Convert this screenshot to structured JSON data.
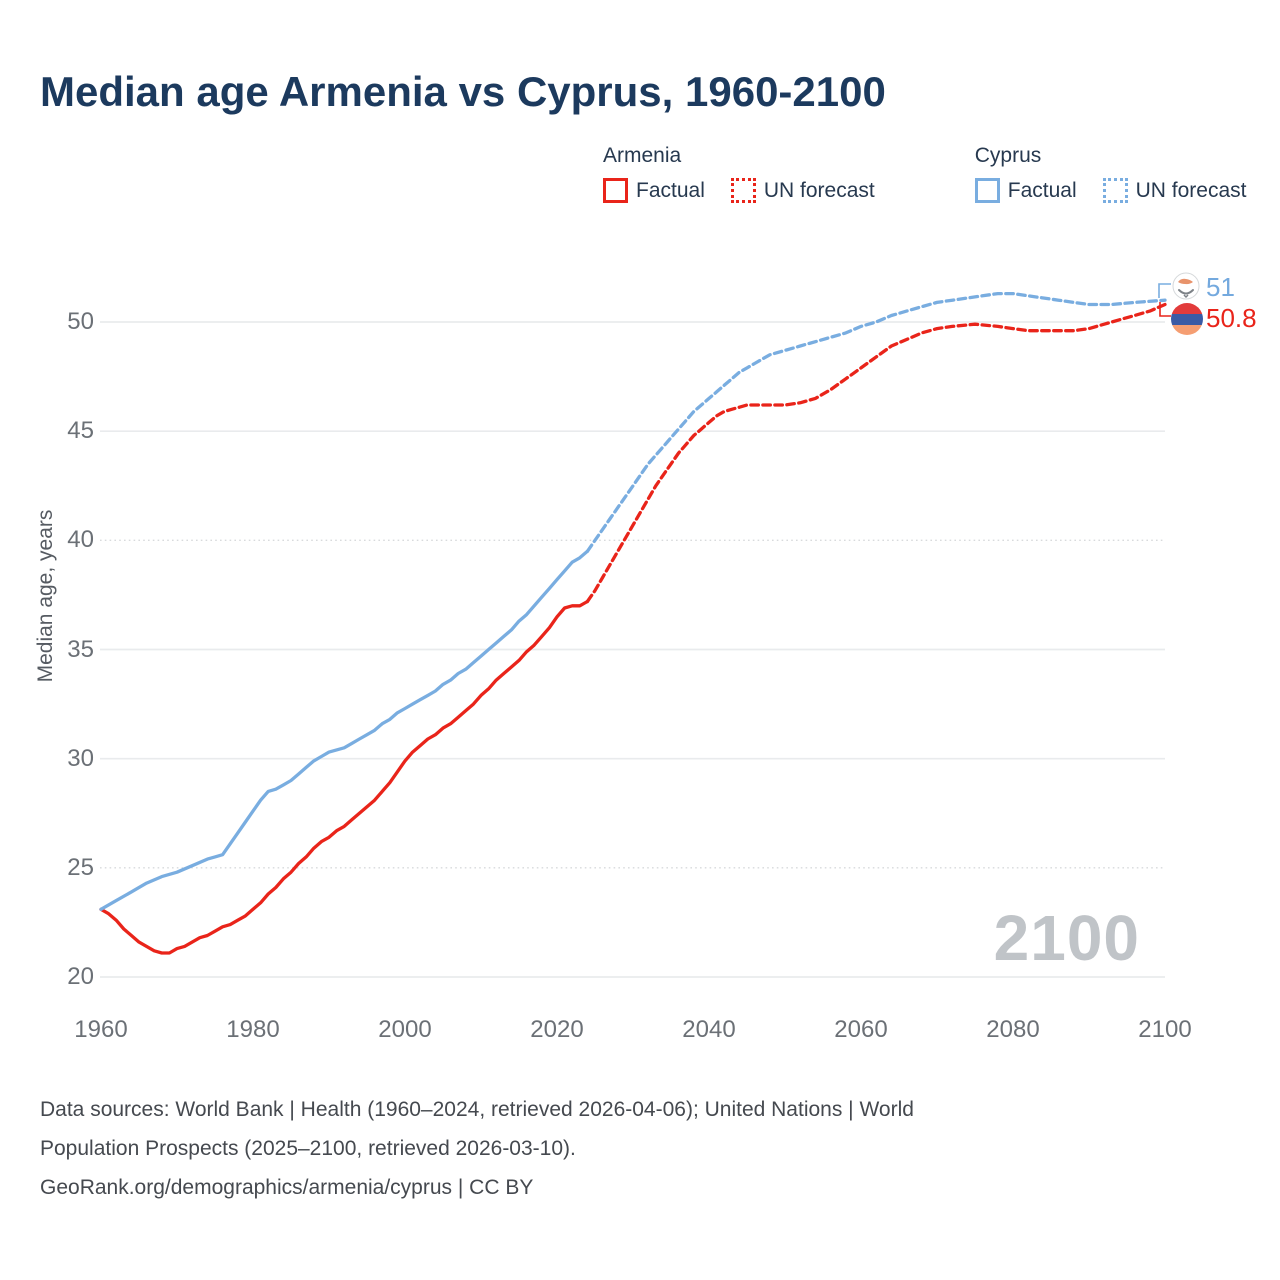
{
  "title": "Median age Armenia vs Cyprus, 1960-2100",
  "legend": {
    "armenia": {
      "name": "Armenia",
      "factual": "Factual",
      "forecast": "UN forecast"
    },
    "cyprus": {
      "name": "Cyprus",
      "factual": "Factual",
      "forecast": "UN forecast"
    }
  },
  "end_labels": {
    "cyprus": {
      "value": "51",
      "color": "#74a9de"
    },
    "armenia": {
      "value": "50.8",
      "color": "#e9241a"
    }
  },
  "watermark": "2100",
  "footer": {
    "line1": "Data sources: World Bank | Health (1960–2024, retrieved 2026-04-06); United Nations | World",
    "line2": "Population Prospects (2025–2100, retrieved 2026-03-10).",
    "line3": "GeoRank.org/demographics/armenia/cyprus | CC BY"
  },
  "colors": {
    "armenia": "#e9241a",
    "cyprus": "#79ade0",
    "grid": "#e9ebed",
    "grid_dotted": "#d8dadc",
    "title_text": "#1c3a5e",
    "tick_text": "#6b7076"
  },
  "chart_data": {
    "type": "line",
    "title": "Median age Armenia vs Cyprus, 1960-2100",
    "xlabel": "",
    "ylabel": "Median age, years",
    "xlim": [
      1960,
      2100
    ],
    "ylim": [
      20,
      52
    ],
    "x_ticks": [
      1960,
      1980,
      2000,
      2020,
      2040,
      2060,
      2080,
      2100
    ],
    "y_ticks": [
      20,
      25,
      30,
      35,
      40,
      45,
      50
    ],
    "dotted_gridlines": [
      25,
      40
    ],
    "legend_position": "top-right",
    "series": [
      {
        "name": "Armenia Factual",
        "color": "#e9241a",
        "dash": "solid",
        "points": [
          [
            1960,
            23.1
          ],
          [
            1961,
            22.9
          ],
          [
            1962,
            22.6
          ],
          [
            1963,
            22.2
          ],
          [
            1964,
            21.9
          ],
          [
            1965,
            21.6
          ],
          [
            1966,
            21.4
          ],
          [
            1967,
            21.2
          ],
          [
            1968,
            21.1
          ],
          [
            1969,
            21.1
          ],
          [
            1970,
            21.3
          ],
          [
            1971,
            21.4
          ],
          [
            1972,
            21.6
          ],
          [
            1973,
            21.8
          ],
          [
            1974,
            21.9
          ],
          [
            1975,
            22.1
          ],
          [
            1976,
            22.3
          ],
          [
            1977,
            22.4
          ],
          [
            1978,
            22.6
          ],
          [
            1979,
            22.8
          ],
          [
            1980,
            23.1
          ],
          [
            1981,
            23.4
          ],
          [
            1982,
            23.8
          ],
          [
            1983,
            24.1
          ],
          [
            1984,
            24.5
          ],
          [
            1985,
            24.8
          ],
          [
            1986,
            25.2
          ],
          [
            1987,
            25.5
          ],
          [
            1988,
            25.9
          ],
          [
            1989,
            26.2
          ],
          [
            1990,
            26.4
          ],
          [
            1991,
            26.7
          ],
          [
            1992,
            26.9
          ],
          [
            1993,
            27.2
          ],
          [
            1994,
            27.5
          ],
          [
            1995,
            27.8
          ],
          [
            1996,
            28.1
          ],
          [
            1997,
            28.5
          ],
          [
            1998,
            28.9
          ],
          [
            1999,
            29.4
          ],
          [
            2000,
            29.9
          ],
          [
            2001,
            30.3
          ],
          [
            2002,
            30.6
          ],
          [
            2003,
            30.9
          ],
          [
            2004,
            31.1
          ],
          [
            2005,
            31.4
          ],
          [
            2006,
            31.6
          ],
          [
            2007,
            31.9
          ],
          [
            2008,
            32.2
          ],
          [
            2009,
            32.5
          ],
          [
            2010,
            32.9
          ],
          [
            2011,
            33.2
          ],
          [
            2012,
            33.6
          ],
          [
            2013,
            33.9
          ],
          [
            2014,
            34.2
          ],
          [
            2015,
            34.5
          ],
          [
            2016,
            34.9
          ],
          [
            2017,
            35.2
          ],
          [
            2018,
            35.6
          ],
          [
            2019,
            36.0
          ],
          [
            2020,
            36.5
          ],
          [
            2021,
            36.9
          ],
          [
            2022,
            37.0
          ],
          [
            2023,
            37.0
          ],
          [
            2024,
            37.2
          ]
        ]
      },
      {
        "name": "Armenia UN forecast",
        "color": "#e9241a",
        "dash": "dashed",
        "points": [
          [
            2024,
            37.2
          ],
          [
            2025,
            37.7
          ],
          [
            2026,
            38.3
          ],
          [
            2027,
            38.9
          ],
          [
            2028,
            39.5
          ],
          [
            2029,
            40.1
          ],
          [
            2030,
            40.7
          ],
          [
            2031,
            41.3
          ],
          [
            2032,
            41.9
          ],
          [
            2033,
            42.5
          ],
          [
            2034,
            43.0
          ],
          [
            2035,
            43.5
          ],
          [
            2036,
            44.0
          ],
          [
            2037,
            44.4
          ],
          [
            2038,
            44.8
          ],
          [
            2039,
            45.1
          ],
          [
            2040,
            45.4
          ],
          [
            2041,
            45.7
          ],
          [
            2042,
            45.9
          ],
          [
            2043,
            46.0
          ],
          [
            2044,
            46.1
          ],
          [
            2045,
            46.2
          ],
          [
            2047,
            46.2
          ],
          [
            2050,
            46.2
          ],
          [
            2052,
            46.3
          ],
          [
            2054,
            46.5
          ],
          [
            2056,
            46.9
          ],
          [
            2058,
            47.4
          ],
          [
            2060,
            47.9
          ],
          [
            2062,
            48.4
          ],
          [
            2064,
            48.9
          ],
          [
            2066,
            49.2
          ],
          [
            2068,
            49.5
          ],
          [
            2070,
            49.7
          ],
          [
            2072,
            49.8
          ],
          [
            2075,
            49.9
          ],
          [
            2078,
            49.8
          ],
          [
            2080,
            49.7
          ],
          [
            2082,
            49.6
          ],
          [
            2085,
            49.6
          ],
          [
            2088,
            49.6
          ],
          [
            2090,
            49.7
          ],
          [
            2092,
            49.9
          ],
          [
            2094,
            50.1
          ],
          [
            2096,
            50.3
          ],
          [
            2098,
            50.5
          ],
          [
            2100,
            50.8
          ]
        ]
      },
      {
        "name": "Cyprus Factual",
        "color": "#79ade0",
        "dash": "solid",
        "points": [
          [
            1960,
            23.1
          ],
          [
            1962,
            23.5
          ],
          [
            1964,
            23.9
          ],
          [
            1966,
            24.3
          ],
          [
            1968,
            24.6
          ],
          [
            1970,
            24.8
          ],
          [
            1972,
            25.1
          ],
          [
            1974,
            25.4
          ],
          [
            1975,
            25.5
          ],
          [
            1976,
            25.6
          ],
          [
            1977,
            26.1
          ],
          [
            1978,
            26.6
          ],
          [
            1979,
            27.1
          ],
          [
            1980,
            27.6
          ],
          [
            1981,
            28.1
          ],
          [
            1982,
            28.5
          ],
          [
            1983,
            28.6
          ],
          [
            1984,
            28.8
          ],
          [
            1985,
            29.0
          ],
          [
            1986,
            29.3
          ],
          [
            1987,
            29.6
          ],
          [
            1988,
            29.9
          ],
          [
            1989,
            30.1
          ],
          [
            1990,
            30.3
          ],
          [
            1991,
            30.4
          ],
          [
            1992,
            30.5
          ],
          [
            1993,
            30.7
          ],
          [
            1994,
            30.9
          ],
          [
            1995,
            31.1
          ],
          [
            1996,
            31.3
          ],
          [
            1997,
            31.6
          ],
          [
            1998,
            31.8
          ],
          [
            1999,
            32.1
          ],
          [
            2000,
            32.3
          ],
          [
            2001,
            32.5
          ],
          [
            2002,
            32.7
          ],
          [
            2003,
            32.9
          ],
          [
            2004,
            33.1
          ],
          [
            2005,
            33.4
          ],
          [
            2006,
            33.6
          ],
          [
            2007,
            33.9
          ],
          [
            2008,
            34.1
          ],
          [
            2009,
            34.4
          ],
          [
            2010,
            34.7
          ],
          [
            2011,
            35.0
          ],
          [
            2012,
            35.3
          ],
          [
            2013,
            35.6
          ],
          [
            2014,
            35.9
          ],
          [
            2015,
            36.3
          ],
          [
            2016,
            36.6
          ],
          [
            2017,
            37.0
          ],
          [
            2018,
            37.4
          ],
          [
            2019,
            37.8
          ],
          [
            2020,
            38.2
          ],
          [
            2021,
            38.6
          ],
          [
            2022,
            39.0
          ],
          [
            2023,
            39.2
          ],
          [
            2024,
            39.5
          ]
        ]
      },
      {
        "name": "Cyprus UN forecast",
        "color": "#79ade0",
        "dash": "dashed",
        "points": [
          [
            2024,
            39.5
          ],
          [
            2025,
            40.0
          ],
          [
            2026,
            40.5
          ],
          [
            2027,
            41.0
          ],
          [
            2028,
            41.5
          ],
          [
            2029,
            42.0
          ],
          [
            2030,
            42.5
          ],
          [
            2031,
            43.0
          ],
          [
            2032,
            43.5
          ],
          [
            2033,
            43.9
          ],
          [
            2034,
            44.3
          ],
          [
            2035,
            44.7
          ],
          [
            2036,
            45.1
          ],
          [
            2037,
            45.5
          ],
          [
            2038,
            45.9
          ],
          [
            2039,
            46.2
          ],
          [
            2040,
            46.5
          ],
          [
            2041,
            46.8
          ],
          [
            2042,
            47.1
          ],
          [
            2043,
            47.4
          ],
          [
            2044,
            47.7
          ],
          [
            2045,
            47.9
          ],
          [
            2046,
            48.1
          ],
          [
            2047,
            48.3
          ],
          [
            2048,
            48.5
          ],
          [
            2050,
            48.7
          ],
          [
            2052,
            48.9
          ],
          [
            2054,
            49.1
          ],
          [
            2056,
            49.3
          ],
          [
            2058,
            49.5
          ],
          [
            2060,
            49.8
          ],
          [
            2062,
            50.0
          ],
          [
            2064,
            50.3
          ],
          [
            2066,
            50.5
          ],
          [
            2068,
            50.7
          ],
          [
            2070,
            50.9
          ],
          [
            2072,
            51.0
          ],
          [
            2074,
            51.1
          ],
          [
            2076,
            51.2
          ],
          [
            2078,
            51.3
          ],
          [
            2080,
            51.3
          ],
          [
            2082,
            51.2
          ],
          [
            2084,
            51.1
          ],
          [
            2086,
            51.0
          ],
          [
            2088,
            50.9
          ],
          [
            2090,
            50.8
          ],
          [
            2093,
            50.8
          ],
          [
            2096,
            50.9
          ],
          [
            2100,
            51.0
          ]
        ]
      }
    ]
  }
}
